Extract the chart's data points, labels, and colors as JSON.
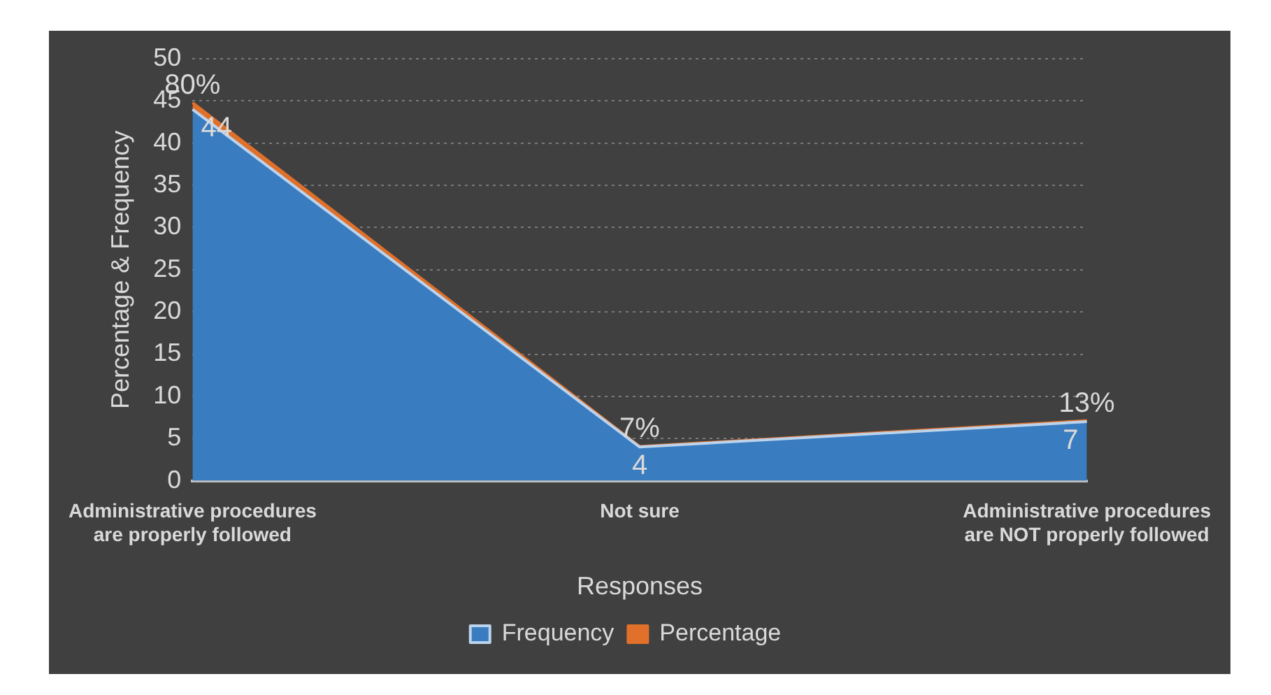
{
  "chart_data": {
    "type": "area",
    "stacked": true,
    "xlabel": "Responses",
    "ylabel": "Percentage & Frequency",
    "categories": [
      "Administrative procedures are properly followed",
      "Not sure",
      "Administrative procedures are NOT properly followed"
    ],
    "series": [
      {
        "name": "Frequency",
        "color": "#3a7cc0",
        "values": [
          44,
          4,
          7
        ],
        "value_labels": [
          "44",
          "4",
          "7"
        ]
      },
      {
        "name": "Percentage",
        "color": "#e0702a",
        "values": [
          0.8,
          0.07,
          0.13
        ],
        "value_labels": [
          "80%",
          "7%",
          "13%"
        ]
      }
    ],
    "ylim": [
      0,
      50
    ],
    "yticks": [
      0,
      5,
      10,
      15,
      20,
      25,
      30,
      35,
      40,
      45,
      50
    ],
    "grid": "y",
    "legend": "bottom"
  }
}
